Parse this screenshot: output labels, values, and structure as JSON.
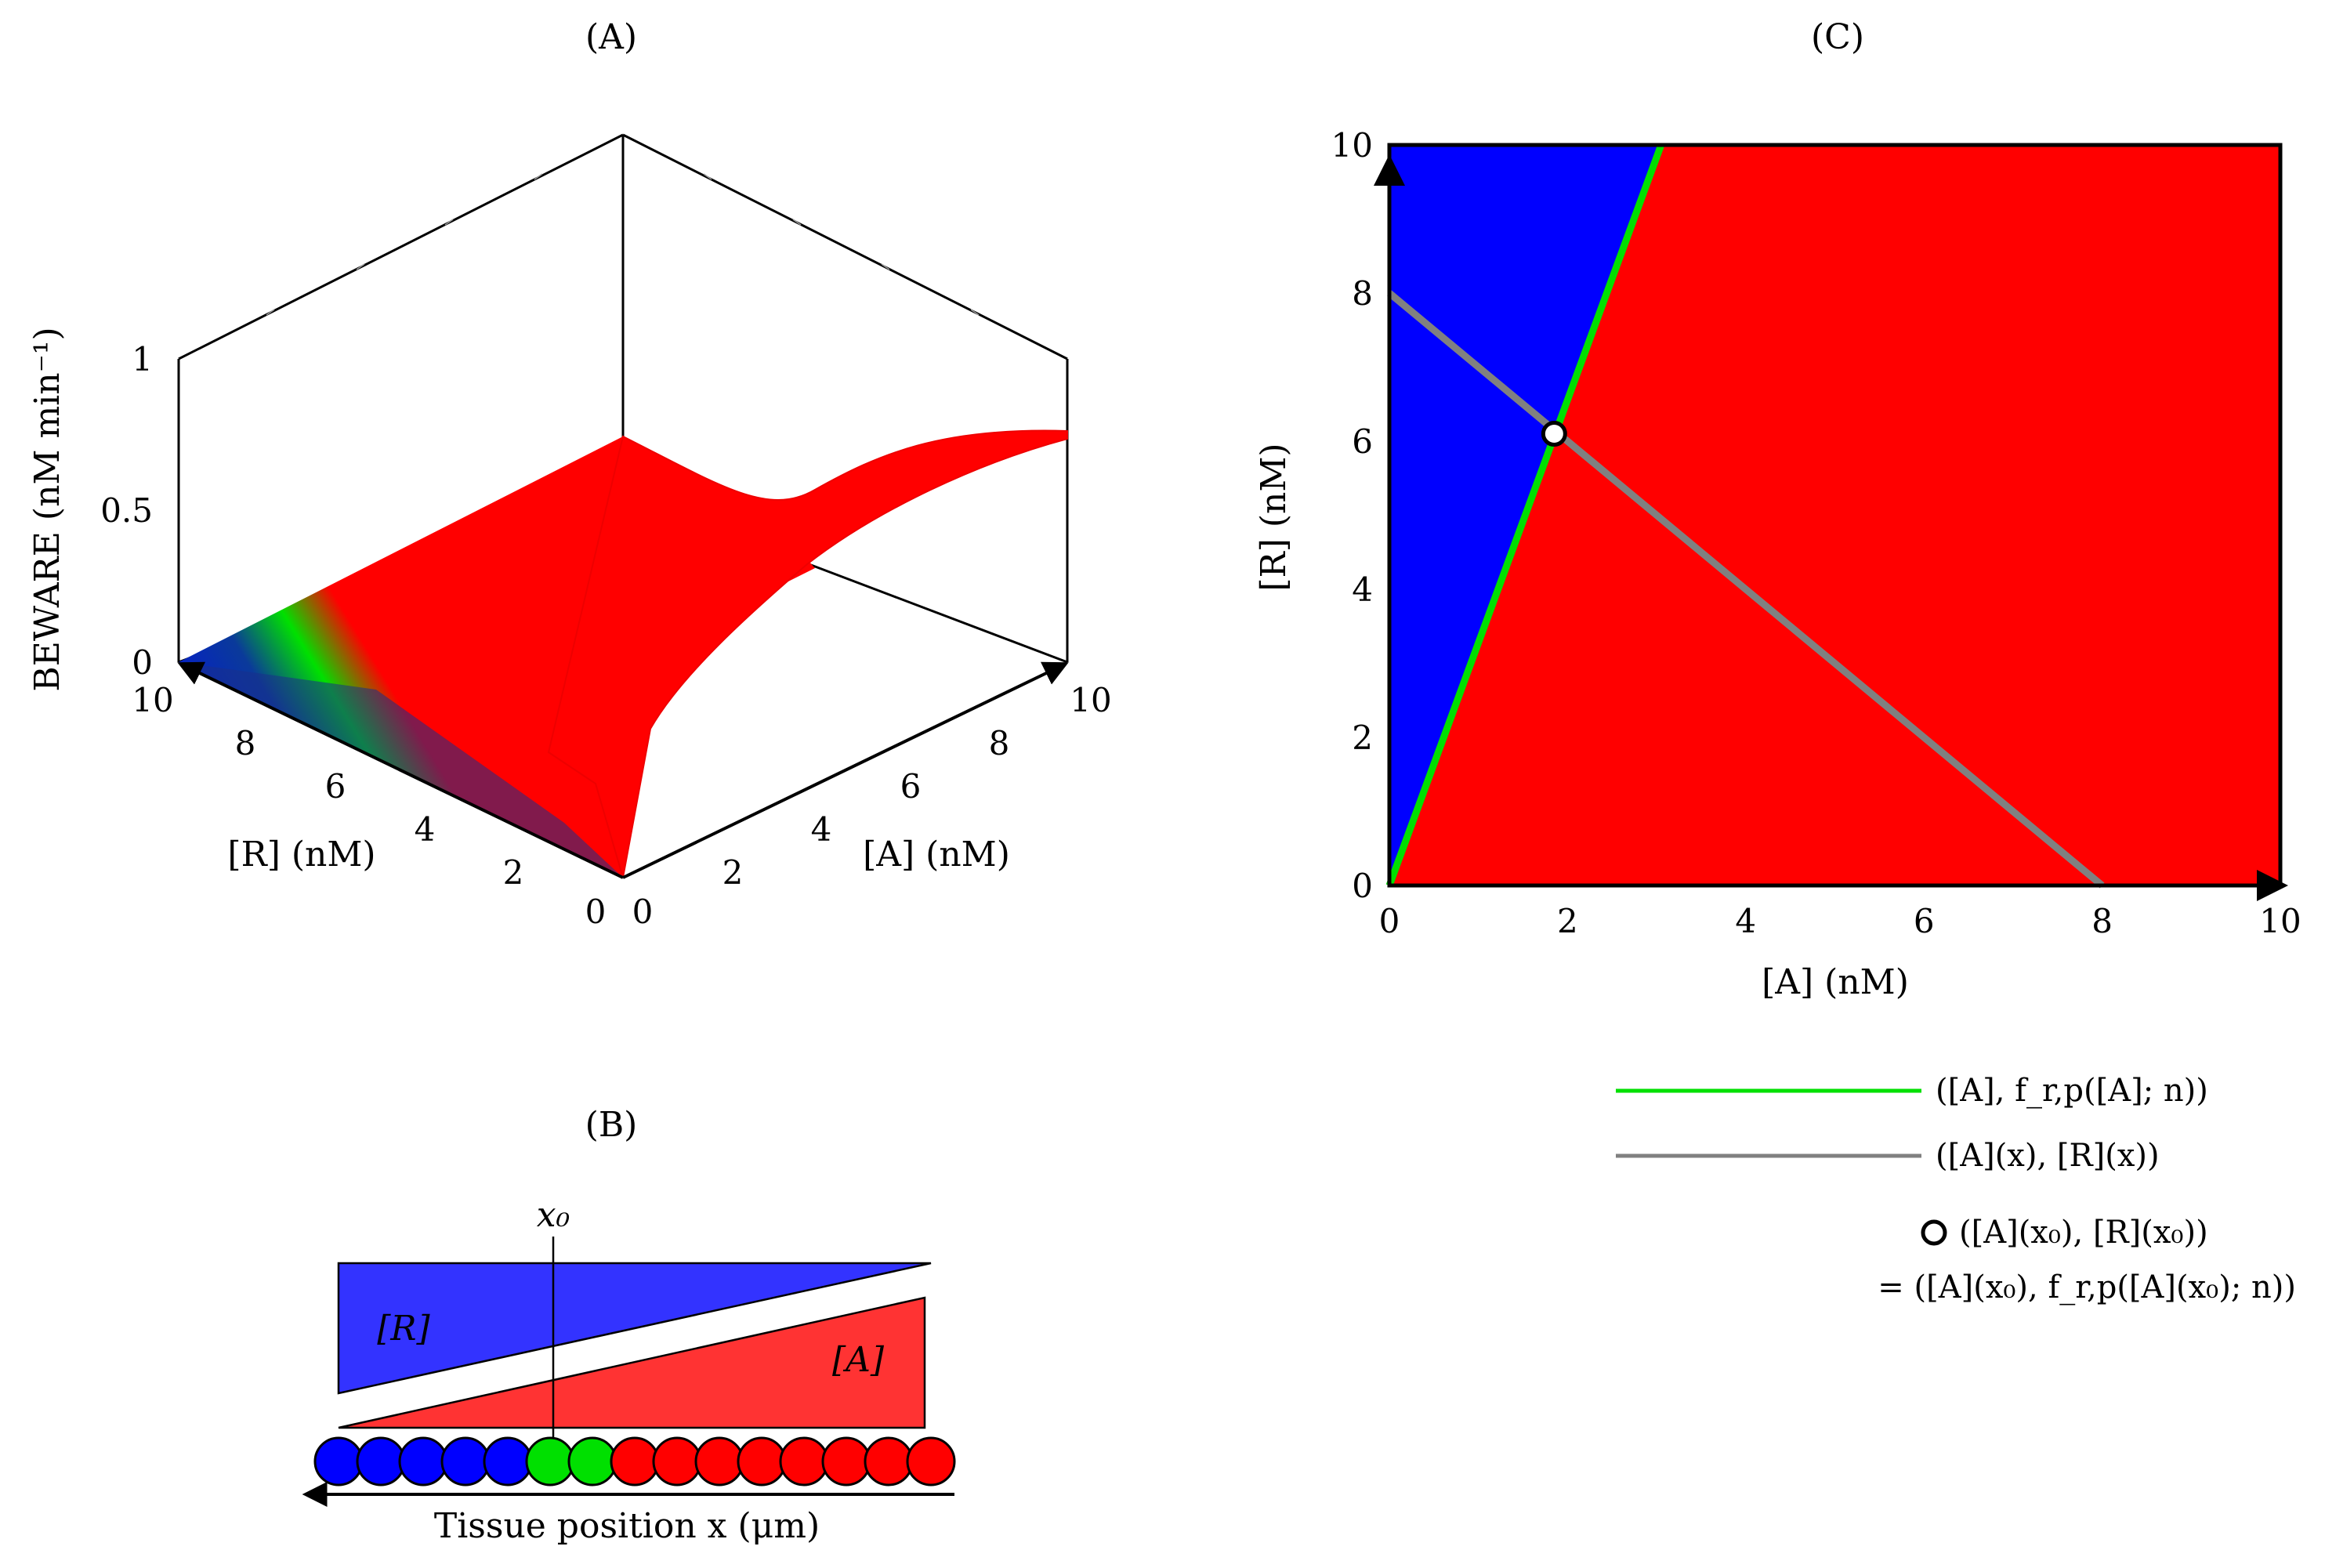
{
  "figure": {
    "panel_a_title": "(A)",
    "panel_b_title": "(B)",
    "panel_c_title": "(C)"
  },
  "colors": {
    "blue": "#0000ff",
    "red": "#ff0000",
    "green": "#00e000",
    "gray": "#808080",
    "light_blue": "#3333ff",
    "light_red": "#ff3333"
  },
  "chart_data": [
    {
      "id": "A",
      "type": "surface3d",
      "title": "(A)",
      "xlabel": "[A] (nM)",
      "ylabel": "[R] (nM)",
      "zlabel": "BEWARE (nM min⁻¹)",
      "x_ticks": [
        "0",
        "2",
        "4",
        "6",
        "8",
        "10"
      ],
      "y_ticks": [
        "0",
        "2",
        "4",
        "6",
        "8",
        "10"
      ],
      "z_ticks": [
        "0",
        "0.5",
        "1"
      ],
      "xlim": [
        0,
        10
      ],
      "ylim": [
        0,
        10
      ],
      "zlim": [
        0,
        1
      ],
      "surface": {
        "low_region_color": "blue",
        "boundary_color": "green",
        "high_region_color": "red",
        "plateau_value": 0.75
      }
    },
    {
      "id": "B",
      "type": "schematic",
      "title": "(B)",
      "marker_label": "x₀",
      "gradient_labels": [
        "[R]",
        "[A]"
      ],
      "xlabel": "Tissue position x (μm)",
      "cells": [
        "blue",
        "blue",
        "blue",
        "blue",
        "blue",
        "green",
        "green",
        "red",
        "red",
        "red",
        "red",
        "red",
        "red",
        "red",
        "red"
      ]
    },
    {
      "id": "C",
      "type": "phase_plane",
      "title": "(C)",
      "xlabel": "[A] (nM)",
      "ylabel": "[R] (nM)",
      "xlim": [
        0,
        10
      ],
      "ylim": [
        0,
        10
      ],
      "x_ticks": [
        "0",
        "2",
        "4",
        "6",
        "8",
        "10"
      ],
      "y_ticks": [
        "0",
        "2",
        "4",
        "6",
        "8",
        "10"
      ],
      "green_line": {
        "x": [
          0,
          3.05
        ],
        "y": [
          0,
          10
        ]
      },
      "gray_line": {
        "x": [
          0,
          8
        ],
        "y": [
          8,
          0
        ]
      },
      "intersection": {
        "x": 1.85,
        "y": 6.1
      },
      "legend": [
        {
          "label": "([A], f_r,p([A]; n))",
          "color": "green",
          "marker": "line"
        },
        {
          "label": "([A](x), [R](x))",
          "color": "gray",
          "marker": "line"
        },
        {
          "label": "([A](x₀), [R](x₀))",
          "marker": "circle"
        },
        {
          "label": "= ([A](x₀), f_r,p([A](x₀); n))",
          "marker": "none"
        }
      ]
    }
  ]
}
